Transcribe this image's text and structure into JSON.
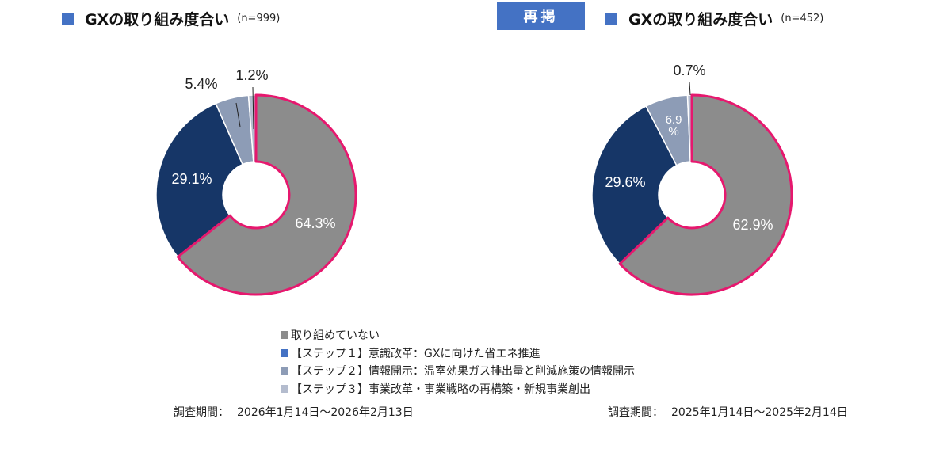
{
  "repost_label": "再掲",
  "charts_meta": [
    {
      "title": "GXの取り組み度合い",
      "n_label": "(n=999)",
      "period_label": "調査期間：",
      "period_value": "2026年1月14日～2026年2月13日"
    },
    {
      "title": "GXの取り組み度合い",
      "n_label": "(n=452)",
      "period_label": "調査期間：",
      "period_value": "2025年1月14日～2025年2月14日"
    }
  ],
  "legend": [
    {
      "label": "取り組めていない",
      "color": "#8c8c8c"
    },
    {
      "label": "【ステップ１】意識改革：GXに向けた省エネ推進",
      "color": "#4472c4"
    },
    {
      "label": "【ステップ２】情報開示：温室効果ガス排出量と削減施策の情報開示",
      "color": "#8d9cb6"
    },
    {
      "label": "【ステップ３】事業改革・事業戦略の再構築・新規事業創出",
      "color": "#b4bcce"
    }
  ],
  "colors": {
    "not_started": "#8c8c8c",
    "step1": "#163667",
    "step2": "#8d9cb6",
    "step3": "#b4bcce",
    "highlight": "#e6186e",
    "accent": "#4472c4"
  },
  "chart_data": [
    {
      "type": "pie",
      "title": "GXの取り組み度合い",
      "series": [
        "取り組めていない",
        "【ステップ１】意識改革：GXに向けた省エネ推進",
        "【ステップ２】情報開示：温室効果ガス排出量と削減施策の情報開示",
        "【ステップ３】事業改革・事業戦略の再構築・新規事業創出"
      ],
      "values": [
        64.3,
        29.1,
        5.4,
        1.2
      ],
      "labels": [
        "64.3%",
        "29.1%",
        "5.4%",
        "1.2%"
      ],
      "highlighted_slice": "取り組めていない",
      "legend_position": "bottom"
    },
    {
      "type": "pie",
      "title": "GXの取り組み度合い",
      "series": [
        "取り組めていない",
        "【ステップ１】意識改革：GXに向けた省エネ推進",
        "【ステップ２】情報開示：温室効果ガス排出量と削減施策の情報開示",
        "【ステップ３】事業改革・事業戦略の再構築・新規事業創出"
      ],
      "values": [
        62.9,
        29.6,
        6.9,
        0.7
      ],
      "labels": [
        "62.9%",
        "29.6%",
        "6.9\n%",
        "0.7%"
      ],
      "highlighted_slice": "取り組めていない",
      "legend_position": "bottom"
    }
  ]
}
